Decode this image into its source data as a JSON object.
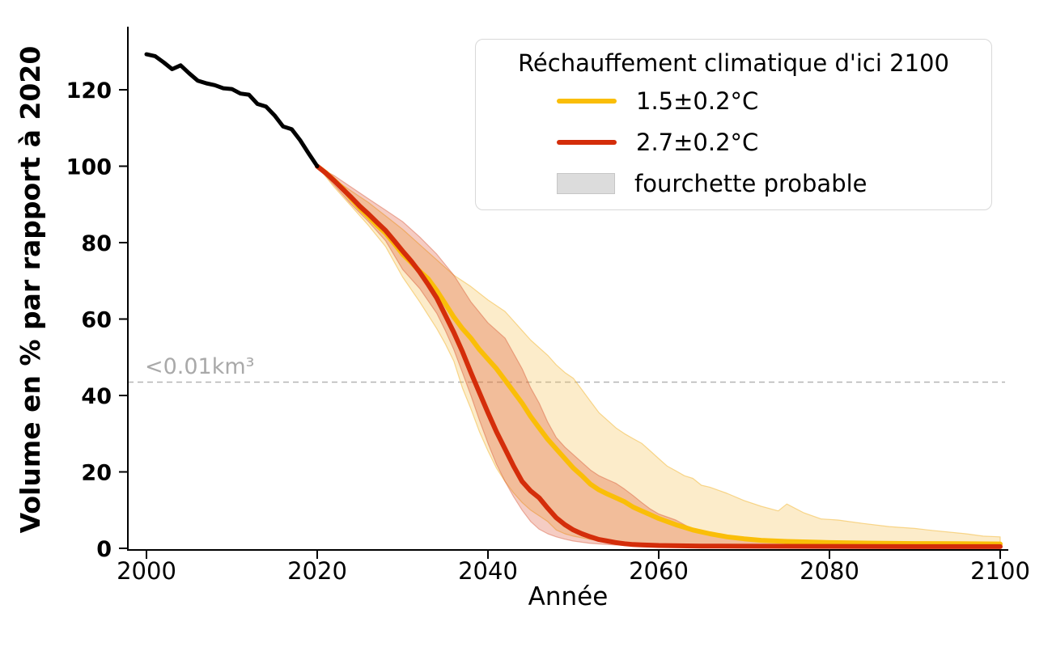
{
  "chart_data": {
    "type": "line",
    "title": "",
    "xlabel": "Année",
    "ylabel": "Volume en % par rapport à 2020",
    "xlim": [
      1998,
      2101
    ],
    "ylim": [
      0,
      136
    ],
    "x_ticks": [
      2000,
      2020,
      2040,
      2060,
      2080,
      2100
    ],
    "y_ticks": [
      0,
      20,
      40,
      60,
      80,
      100,
      120
    ],
    "grid": false,
    "threshold": {
      "label": "<0.01km³",
      "value": 43.5,
      "line_color": "#b4b4b4",
      "label_color": "#a9a9a9"
    },
    "legend": {
      "position": "upper right",
      "title": "Réchauffement climatique d'ici 2100",
      "items": [
        {
          "label": "1.5±0.2°C",
          "swatch": "line",
          "color": "#FABE08"
        },
        {
          "label": "2.7±0.2°C",
          "swatch": "line",
          "color": "#D42D0A"
        },
        {
          "label": "fourchette probable",
          "swatch": "patch",
          "color": "#DCDCDC"
        }
      ]
    },
    "series": [
      {
        "id": "historical-2000-2020",
        "color": "#000000",
        "width": 5,
        "points": [
          [
            2000,
            129.3
          ],
          [
            2001,
            128.8
          ],
          [
            2002,
            127.2
          ],
          [
            2003,
            125.4
          ],
          [
            2004,
            126.4
          ],
          [
            2005,
            124.3
          ],
          [
            2006,
            122.4
          ],
          [
            2007,
            121.7
          ],
          [
            2008,
            121.2
          ],
          [
            2009,
            120.4
          ],
          [
            2010,
            120.2
          ],
          [
            2011,
            119.0
          ],
          [
            2012,
            118.7
          ],
          [
            2013,
            116.3
          ],
          [
            2014,
            115.6
          ],
          [
            2015,
            113.3
          ],
          [
            2016,
            110.4
          ],
          [
            2017,
            109.7
          ],
          [
            2018,
            106.8
          ],
          [
            2019,
            103.3
          ],
          [
            2020,
            100
          ]
        ]
      },
      {
        "id": "warming-1.5C",
        "label": "1.5±0.2°C",
        "color": "#FABE08",
        "width": 6,
        "points": [
          [
            2020,
            100
          ],
          [
            2021,
            98.3
          ],
          [
            2022,
            96.3
          ],
          [
            2023,
            94.2
          ],
          [
            2024,
            91.5
          ],
          [
            2025,
            89
          ],
          [
            2026,
            86.8
          ],
          [
            2027,
            84.5
          ],
          [
            2028,
            82.5
          ],
          [
            2029,
            79.8
          ],
          [
            2030,
            77
          ],
          [
            2031,
            74.8
          ],
          [
            2032,
            72.5
          ],
          [
            2033,
            70.5
          ],
          [
            2034,
            67.5
          ],
          [
            2035,
            64
          ],
          [
            2036,
            60.5
          ],
          [
            2037,
            57.5
          ],
          [
            2038,
            55
          ],
          [
            2039,
            52
          ],
          [
            2040,
            49.5
          ],
          [
            2041,
            47
          ],
          [
            2042,
            44
          ],
          [
            2043,
            41
          ],
          [
            2044,
            38
          ],
          [
            2045,
            34.5
          ],
          [
            2046,
            31.5
          ],
          [
            2047,
            28.5
          ],
          [
            2048,
            26
          ],
          [
            2049,
            23.5
          ],
          [
            2050,
            21
          ],
          [
            2051,
            19
          ],
          [
            2052,
            16.8
          ],
          [
            2053,
            15.3
          ],
          [
            2054,
            14.2
          ],
          [
            2055,
            13.2
          ],
          [
            2056,
            12.2
          ],
          [
            2057,
            10.8
          ],
          [
            2058,
            9.8
          ],
          [
            2059,
            8.8
          ],
          [
            2060,
            7.8
          ],
          [
            2061,
            7
          ],
          [
            2062,
            6.2
          ],
          [
            2063,
            5.5
          ],
          [
            2064,
            4.8
          ],
          [
            2065,
            4.3
          ],
          [
            2066,
            3.8
          ],
          [
            2067,
            3.4
          ],
          [
            2068,
            3
          ],
          [
            2070,
            2.5
          ],
          [
            2072,
            2.1
          ],
          [
            2075,
            1.8
          ],
          [
            2080,
            1.5
          ],
          [
            2085,
            1.35
          ],
          [
            2090,
            1.25
          ],
          [
            2095,
            1.2
          ],
          [
            2100,
            1.15
          ]
        ],
        "band": {
          "fill": "rgba(247,197,90,0.32)",
          "edge": "rgba(243,186,60,0.55)",
          "upper": [
            [
              2020,
              100
            ],
            [
              2022,
              96.5
            ],
            [
              2024,
              93.5
            ],
            [
              2026,
              90.5
            ],
            [
              2028,
              87
            ],
            [
              2030,
              83.5
            ],
            [
              2032,
              79.5
            ],
            [
              2034,
              75.5
            ],
            [
              2036,
              71.5
            ],
            [
              2038,
              68.5
            ],
            [
              2040,
              65
            ],
            [
              2042,
              62
            ],
            [
              2043,
              59.5
            ],
            [
              2044,
              57
            ],
            [
              2045,
              54.5
            ],
            [
              2046,
              52.5
            ],
            [
              2047,
              50.5
            ],
            [
              2048,
              48
            ],
            [
              2049,
              46
            ],
            [
              2050,
              44.5
            ],
            [
              2051,
              41.5
            ],
            [
              2052,
              38.5
            ],
            [
              2053,
              35.5
            ],
            [
              2054,
              33.5
            ],
            [
              2055,
              31.5
            ],
            [
              2056,
              30
            ],
            [
              2057,
              28.7
            ],
            [
              2058,
              27.5
            ],
            [
              2059,
              25.5
            ],
            [
              2060,
              23.5
            ],
            [
              2061,
              21.5
            ],
            [
              2062,
              20.3
            ],
            [
              2063,
              19
            ],
            [
              2064,
              18.3
            ],
            [
              2065,
              16.5
            ],
            [
              2066,
              16
            ],
            [
              2068,
              14.4
            ],
            [
              2070,
              12.5
            ],
            [
              2072,
              11
            ],
            [
              2074,
              9.8
            ],
            [
              2075,
              11.6
            ],
            [
              2077,
              9.3
            ],
            [
              2079,
              7.7
            ],
            [
              2081,
              7.4
            ],
            [
              2084,
              6.5
            ],
            [
              2087,
              5.7
            ],
            [
              2090,
              5.2
            ],
            [
              2092,
              4.7
            ],
            [
              2096,
              3.8
            ],
            [
              2098,
              3.2
            ],
            [
              2100,
              3
            ]
          ],
          "lower": [
            [
              2020,
              100
            ],
            [
              2022,
              94.5
            ],
            [
              2024,
              89.5
            ],
            [
              2026,
              84.5
            ],
            [
              2028,
              79
            ],
            [
              2030,
              71
            ],
            [
              2032,
              64.5
            ],
            [
              2034,
              57.5
            ],
            [
              2035,
              53.5
            ],
            [
              2036,
              49
            ],
            [
              2037,
              42
            ],
            [
              2038,
              36.5
            ],
            [
              2039,
              30.5
            ],
            [
              2040,
              25.5
            ],
            [
              2041,
              21
            ],
            [
              2042,
              17.5
            ],
            [
              2043,
              14.5
            ],
            [
              2044,
              12
            ],
            [
              2045,
              10
            ],
            [
              2046,
              8.5
            ],
            [
              2047,
              7
            ],
            [
              2048,
              4.8
            ],
            [
              2049,
              3.8
            ],
            [
              2050,
              3.2
            ],
            [
              2052,
              2.3
            ],
            [
              2054,
              1.8
            ],
            [
              2056,
              1.4
            ],
            [
              2058,
              1.1
            ],
            [
              2060,
              0.9
            ],
            [
              2065,
              0.65
            ],
            [
              2070,
              0.55
            ],
            [
              2080,
              0.45
            ],
            [
              2100,
              0.4
            ]
          ]
        }
      },
      {
        "id": "warming-2.7C",
        "label": "2.7±0.2°C",
        "color": "#D42D0A",
        "width": 6,
        "points": [
          [
            2020,
            100
          ],
          [
            2021,
            98.2
          ],
          [
            2022,
            96.2
          ],
          [
            2023,
            94
          ],
          [
            2024,
            91.8
          ],
          [
            2025,
            89.5
          ],
          [
            2026,
            87.5
          ],
          [
            2027,
            85.3
          ],
          [
            2028,
            83.2
          ],
          [
            2029,
            80.5
          ],
          [
            2030,
            77.8
          ],
          [
            2031,
            75.2
          ],
          [
            2032,
            72.3
          ],
          [
            2033,
            69
          ],
          [
            2034,
            65.5
          ],
          [
            2035,
            61
          ],
          [
            2036,
            56.5
          ],
          [
            2037,
            51.5
          ],
          [
            2038,
            46
          ],
          [
            2039,
            40.7
          ],
          [
            2040,
            35.5
          ],
          [
            2041,
            30.5
          ],
          [
            2042,
            26
          ],
          [
            2043,
            21.5
          ],
          [
            2044,
            17.5
          ],
          [
            2045,
            15
          ],
          [
            2046,
            13.2
          ],
          [
            2047,
            10.5
          ],
          [
            2048,
            8
          ],
          [
            2049,
            6.2
          ],
          [
            2050,
            4.8
          ],
          [
            2051,
            3.8
          ],
          [
            2052,
            3
          ],
          [
            2053,
            2.3
          ],
          [
            2054,
            1.9
          ],
          [
            2055,
            1.5
          ],
          [
            2056,
            1.2
          ],
          [
            2057,
            1
          ],
          [
            2058,
            0.9
          ],
          [
            2060,
            0.75
          ],
          [
            2065,
            0.6
          ],
          [
            2070,
            0.55
          ],
          [
            2080,
            0.5
          ],
          [
            2090,
            0.45
          ],
          [
            2100,
            0.45
          ]
        ],
        "band": {
          "fill": "rgba(213,40,5,0.24)",
          "edge": "rgba(213,75,40,0.40)",
          "upper": [
            [
              2020,
              100
            ],
            [
              2022,
              97.5
            ],
            [
              2024,
              94.5
            ],
            [
              2026,
              91.5
            ],
            [
              2028,
              88.5
            ],
            [
              2030,
              85.5
            ],
            [
              2032,
              81.5
            ],
            [
              2034,
              77
            ],
            [
              2036,
              71.5
            ],
            [
              2038,
              64.5
            ],
            [
              2040,
              59
            ],
            [
              2042,
              55
            ],
            [
              2043,
              51
            ],
            [
              2044,
              47
            ],
            [
              2045,
              42
            ],
            [
              2046,
              38
            ],
            [
              2047,
              33
            ],
            [
              2048,
              29
            ],
            [
              2049,
              26.5
            ],
            [
              2050,
              24.5
            ],
            [
              2051,
              22.5
            ],
            [
              2052,
              20.5
            ],
            [
              2053,
              19
            ],
            [
              2054,
              18
            ],
            [
              2055,
              17
            ],
            [
              2056,
              15.5
            ],
            [
              2057,
              13.8
            ],
            [
              2058,
              12
            ],
            [
              2059,
              10.3
            ],
            [
              2060,
              9
            ],
            [
              2062,
              7.4
            ],
            [
              2064,
              5
            ],
            [
              2066,
              3.7
            ],
            [
              2068,
              2.7
            ],
            [
              2070,
              2.1
            ],
            [
              2075,
              1.4
            ],
            [
              2080,
              1.1
            ],
            [
              2090,
              0.85
            ],
            [
              2100,
              0.75
            ]
          ],
          "lower": [
            [
              2020,
              100
            ],
            [
              2022,
              95
            ],
            [
              2024,
              90
            ],
            [
              2026,
              85.5
            ],
            [
              2028,
              80.5
            ],
            [
              2030,
              73
            ],
            [
              2032,
              68
            ],
            [
              2034,
              61.5
            ],
            [
              2035,
              57
            ],
            [
              2036,
              52
            ],
            [
              2037,
              46
            ],
            [
              2038,
              40
            ],
            [
              2039,
              33.5
            ],
            [
              2040,
              27.5
            ],
            [
              2041,
              22
            ],
            [
              2042,
              17.5
            ],
            [
              2043,
              13.5
            ],
            [
              2044,
              10
            ],
            [
              2045,
              7
            ],
            [
              2046,
              5
            ],
            [
              2047,
              3.8
            ],
            [
              2048,
              3
            ],
            [
              2049,
              2.4
            ],
            [
              2050,
              1.9
            ],
            [
              2052,
              1.3
            ],
            [
              2054,
              1
            ],
            [
              2056,
              0.75
            ],
            [
              2058,
              0.6
            ],
            [
              2060,
              0.5
            ],
            [
              2065,
              0.38
            ],
            [
              2070,
              0.3
            ],
            [
              2080,
              0.25
            ],
            [
              2100,
              0.2
            ]
          ]
        }
      }
    ]
  }
}
